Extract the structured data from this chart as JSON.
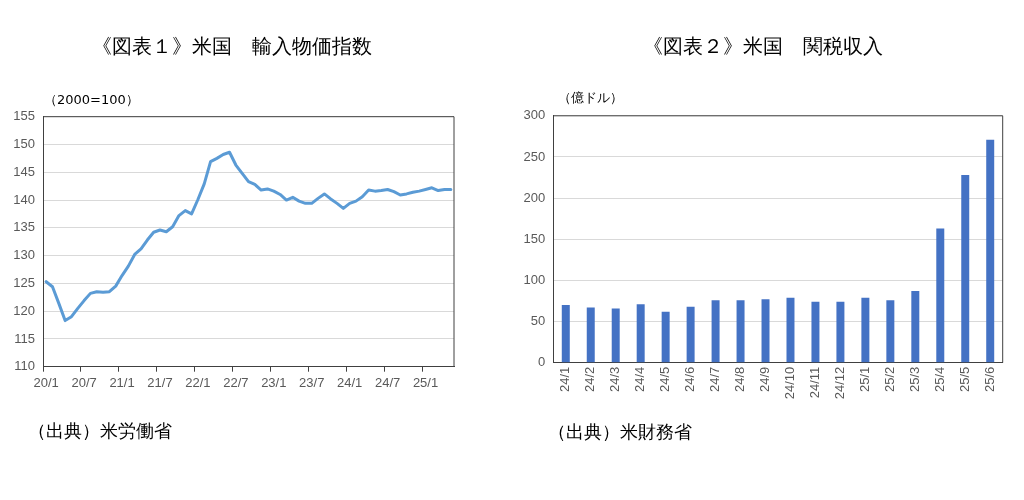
{
  "chart_data": [
    {
      "type": "line",
      "title": "《図表１》米国　輸入物価指数",
      "ylabel": "（2000=100）",
      "annotations": [
        "（出典）米労働省"
      ],
      "categories": [
        "20/1",
        null,
        null,
        null,
        null,
        null,
        "20/7",
        null,
        null,
        null,
        null,
        null,
        "21/1",
        null,
        null,
        null,
        null,
        null,
        "21/7",
        null,
        null,
        null,
        null,
        null,
        "22/1",
        null,
        null,
        null,
        null,
        null,
        "22/7",
        null,
        null,
        null,
        null,
        null,
        "23/1",
        null,
        null,
        null,
        null,
        null,
        "23/7",
        null,
        null,
        null,
        null,
        null,
        "24/1",
        null,
        null,
        null,
        null,
        null,
        "24/7",
        null,
        null,
        null,
        null,
        null,
        "25/1",
        null,
        null,
        null,
        null
      ],
      "values": [
        125.3,
        124.4,
        121.4,
        118.3,
        119.0,
        120.5,
        121.9,
        123.2,
        123.5,
        123.4,
        123.5,
        124.5,
        126.4,
        128.1,
        130.2,
        131.2,
        132.8,
        134.2,
        134.6,
        134.3,
        135.2,
        137.2,
        138.1,
        137.5,
        140.1,
        142.9,
        146.9,
        147.5,
        148.2,
        148.6,
        146.3,
        144.8,
        143.3,
        142.8,
        141.8,
        142.0,
        141.6,
        141.0,
        140.0,
        140.5,
        139.8,
        139.4,
        139.4,
        140.3,
        141.1,
        140.2,
        139.4,
        138.5,
        139.4,
        139.8,
        140.6,
        141.8,
        141.6,
        141.7,
        141.9,
        141.5,
        140.9,
        141.1,
        141.4,
        141.6,
        141.9,
        142.2,
        141.7,
        141.9,
        141.9
      ],
      "color": "#5b9bd5",
      "marker": "none",
      "ylim": [
        110,
        155
      ],
      "yticks": [
        110,
        115,
        120,
        125,
        130,
        135,
        140,
        145,
        150,
        155
      ],
      "grid": "y",
      "legend": false
    },
    {
      "type": "bar",
      "title": "《図表２》米国　関税収入",
      "ylabel": "（億ドル）",
      "annotations": [
        "（出典）米財務省"
      ],
      "categories": [
        "24/1",
        "24/2",
        "24/3",
        "24/4",
        "24/5",
        "24/6",
        "24/7",
        "24/8",
        "24/9",
        "24/10",
        "24/11",
        "24/12",
        "25/1",
        "25/2",
        "25/3",
        "25/4",
        "25/5",
        "25/6"
      ],
      "values": [
        70,
        67,
        66,
        71,
        62,
        68,
        76,
        76,
        77,
        79,
        74,
        74,
        79,
        76,
        87,
        163,
        228,
        271
      ],
      "color": "#4472c4",
      "ylim": [
        0,
        300
      ],
      "yticks": [
        0,
        50,
        100,
        150,
        200,
        250,
        300
      ],
      "grid": "y",
      "legend": false
    }
  ]
}
